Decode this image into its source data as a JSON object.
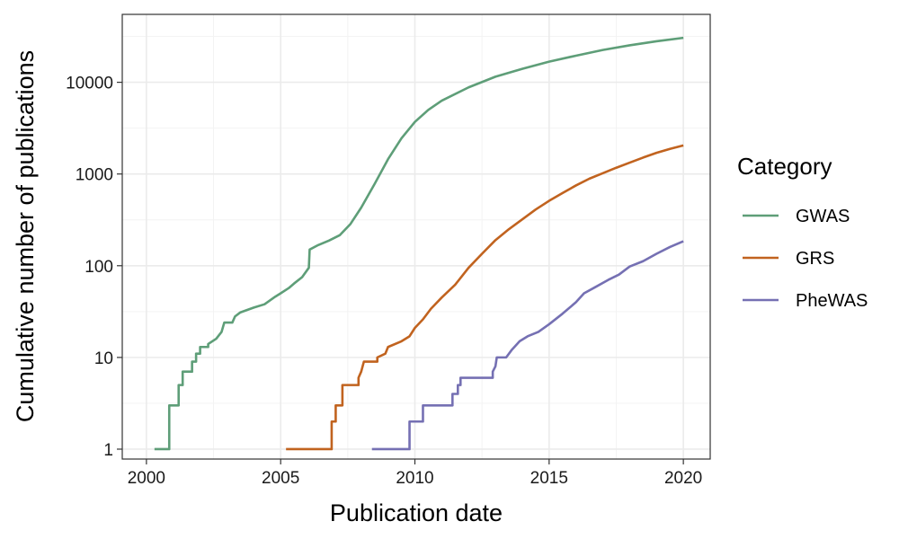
{
  "chart_data": {
    "type": "line",
    "xlabel": "Publication date",
    "ylabel": "Cumulative number of publications",
    "x_scale": "date",
    "y_scale": "log10",
    "xlim": [
      1999.1,
      2021.0
    ],
    "ylim": [
      0.78,
      55000
    ],
    "x_ticks": [
      {
        "value": 2000,
        "label": "2000"
      },
      {
        "value": 2005,
        "label": "2005"
      },
      {
        "value": 2010,
        "label": "2010"
      },
      {
        "value": 2015,
        "label": "2015"
      },
      {
        "value": 2020,
        "label": "2020"
      }
    ],
    "y_ticks": [
      {
        "value": 1,
        "label": "1"
      },
      {
        "value": 10,
        "label": "10"
      },
      {
        "value": 100,
        "label": "100"
      },
      {
        "value": 1000,
        "label": "1000"
      },
      {
        "value": 10000,
        "label": "10000"
      }
    ],
    "grid": true,
    "legend": {
      "title": "Category",
      "position": "right"
    },
    "series": [
      {
        "name": "GWAS",
        "color": "#5e9e78",
        "step": false,
        "points": [
          [
            2000.3,
            1
          ],
          [
            2000.85,
            1
          ],
          [
            2000.85,
            3
          ],
          [
            2001.2,
            3
          ],
          [
            2001.2,
            5
          ],
          [
            2001.35,
            5
          ],
          [
            2001.35,
            7
          ],
          [
            2001.7,
            7
          ],
          [
            2001.7,
            9
          ],
          [
            2001.85,
            9
          ],
          [
            2001.85,
            11
          ],
          [
            2002.0,
            11
          ],
          [
            2002.0,
            13
          ],
          [
            2002.3,
            13
          ],
          [
            2002.3,
            14
          ],
          [
            2002.6,
            16
          ],
          [
            2002.8,
            19
          ],
          [
            2002.9,
            24
          ],
          [
            2003.2,
            24
          ],
          [
            2003.3,
            28
          ],
          [
            2003.5,
            31
          ],
          [
            2004.0,
            35
          ],
          [
            2004.4,
            38
          ],
          [
            2004.8,
            46
          ],
          [
            2005.0,
            50
          ],
          [
            2005.3,
            57
          ],
          [
            2005.5,
            64
          ],
          [
            2005.8,
            75
          ],
          [
            2006.05,
            95
          ],
          [
            2006.08,
            150
          ],
          [
            2006.4,
            168
          ],
          [
            2006.8,
            188
          ],
          [
            2007.2,
            215
          ],
          [
            2007.6,
            285
          ],
          [
            2008.0,
            430
          ],
          [
            2008.5,
            780
          ],
          [
            2009.0,
            1450
          ],
          [
            2009.5,
            2450
          ],
          [
            2010.0,
            3700
          ],
          [
            2010.5,
            5000
          ],
          [
            2011.0,
            6300
          ],
          [
            2012.0,
            8800
          ],
          [
            2013.0,
            11500
          ],
          [
            2014.0,
            14000
          ],
          [
            2015.0,
            16800
          ],
          [
            2016.0,
            19500
          ],
          [
            2017.0,
            22500
          ],
          [
            2018.0,
            25300
          ],
          [
            2019.0,
            28000
          ],
          [
            2020.0,
            30500
          ]
        ]
      },
      {
        "name": "GRS",
        "color": "#c1631f",
        "step": false,
        "points": [
          [
            2005.2,
            1
          ],
          [
            2006.9,
            1
          ],
          [
            2006.9,
            2
          ],
          [
            2007.05,
            2
          ],
          [
            2007.05,
            3
          ],
          [
            2007.3,
            3
          ],
          [
            2007.3,
            5
          ],
          [
            2007.9,
            5
          ],
          [
            2007.9,
            6
          ],
          [
            2008.0,
            7
          ],
          [
            2008.1,
            9
          ],
          [
            2008.6,
            9
          ],
          [
            2008.6,
            10
          ],
          [
            2008.9,
            11
          ],
          [
            2009.0,
            13
          ],
          [
            2009.5,
            15
          ],
          [
            2009.8,
            17
          ],
          [
            2010.0,
            21
          ],
          [
            2010.3,
            26
          ],
          [
            2010.6,
            34
          ],
          [
            2011.0,
            45
          ],
          [
            2011.5,
            62
          ],
          [
            2012.0,
            95
          ],
          [
            2012.5,
            135
          ],
          [
            2013.0,
            190
          ],
          [
            2013.5,
            250
          ],
          [
            2014.0,
            320
          ],
          [
            2014.5,
            410
          ],
          [
            2015.0,
            510
          ],
          [
            2015.5,
            620
          ],
          [
            2016.0,
            750
          ],
          [
            2016.5,
            890
          ],
          [
            2017.0,
            1020
          ],
          [
            2017.5,
            1170
          ],
          [
            2018.0,
            1330
          ],
          [
            2018.5,
            1510
          ],
          [
            2019.0,
            1700
          ],
          [
            2019.5,
            1880
          ],
          [
            2020.0,
            2050
          ]
        ]
      },
      {
        "name": "PheWAS",
        "color": "#7570b3",
        "step": false,
        "points": [
          [
            2008.4,
            1
          ],
          [
            2009.8,
            1
          ],
          [
            2009.8,
            2
          ],
          [
            2010.3,
            2
          ],
          [
            2010.3,
            3
          ],
          [
            2011.4,
            3
          ],
          [
            2011.4,
            4
          ],
          [
            2011.6,
            4
          ],
          [
            2011.6,
            5
          ],
          [
            2011.7,
            5
          ],
          [
            2011.7,
            6
          ],
          [
            2012.9,
            6
          ],
          [
            2012.9,
            7
          ],
          [
            2013.0,
            8
          ],
          [
            2013.05,
            10
          ],
          [
            2013.4,
            10
          ],
          [
            2013.6,
            12
          ],
          [
            2013.9,
            15
          ],
          [
            2014.2,
            17
          ],
          [
            2014.6,
            19
          ],
          [
            2015.0,
            23
          ],
          [
            2015.5,
            30
          ],
          [
            2016.0,
            40
          ],
          [
            2016.3,
            50
          ],
          [
            2016.7,
            58
          ],
          [
            2017.2,
            70
          ],
          [
            2017.6,
            80
          ],
          [
            2018.0,
            98
          ],
          [
            2018.5,
            112
          ],
          [
            2019.0,
            135
          ],
          [
            2019.5,
            160
          ],
          [
            2020.0,
            185
          ]
        ]
      }
    ]
  }
}
